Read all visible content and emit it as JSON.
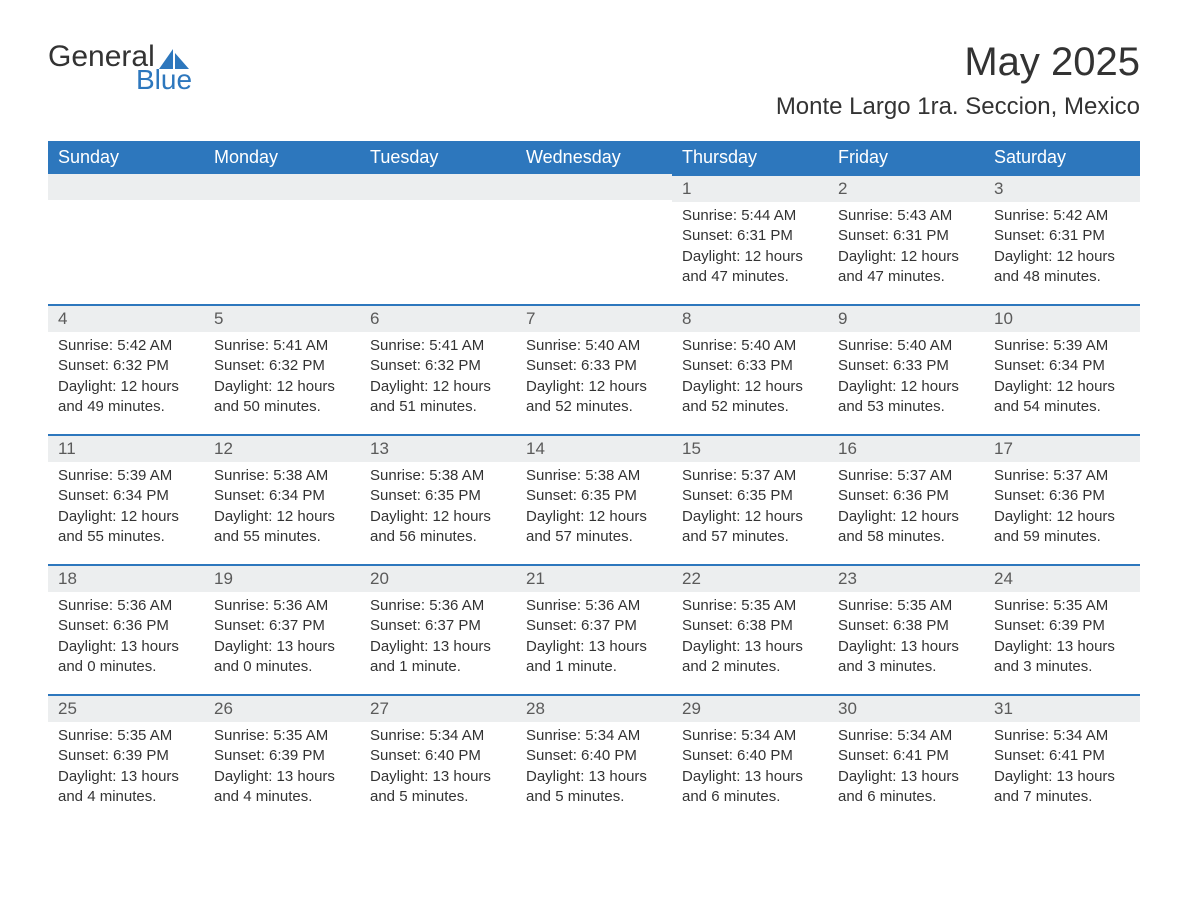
{
  "logo": {
    "text_general": "General",
    "text_blue": "Blue",
    "sail_color": "#2d77bd"
  },
  "title": "May 2025",
  "location": "Monte Largo 1ra. Seccion, Mexico",
  "colors": {
    "header_bg": "#2d77bd",
    "header_text": "#ffffff",
    "strip_bg": "#eceeef",
    "strip_border": "#2d77bd",
    "body_bg": "#ffffff",
    "text": "#333333"
  },
  "weekdays": [
    "Sunday",
    "Monday",
    "Tuesday",
    "Wednesday",
    "Thursday",
    "Friday",
    "Saturday"
  ],
  "weeks": [
    [
      null,
      null,
      null,
      null,
      {
        "day": "1",
        "sunrise": "Sunrise: 5:44 AM",
        "sunset": "Sunset: 6:31 PM",
        "daylight1": "Daylight: 12 hours",
        "daylight2": "and 47 minutes."
      },
      {
        "day": "2",
        "sunrise": "Sunrise: 5:43 AM",
        "sunset": "Sunset: 6:31 PM",
        "daylight1": "Daylight: 12 hours",
        "daylight2": "and 47 minutes."
      },
      {
        "day": "3",
        "sunrise": "Sunrise: 5:42 AM",
        "sunset": "Sunset: 6:31 PM",
        "daylight1": "Daylight: 12 hours",
        "daylight2": "and 48 minutes."
      }
    ],
    [
      {
        "day": "4",
        "sunrise": "Sunrise: 5:42 AM",
        "sunset": "Sunset: 6:32 PM",
        "daylight1": "Daylight: 12 hours",
        "daylight2": "and 49 minutes."
      },
      {
        "day": "5",
        "sunrise": "Sunrise: 5:41 AM",
        "sunset": "Sunset: 6:32 PM",
        "daylight1": "Daylight: 12 hours",
        "daylight2": "and 50 minutes."
      },
      {
        "day": "6",
        "sunrise": "Sunrise: 5:41 AM",
        "sunset": "Sunset: 6:32 PM",
        "daylight1": "Daylight: 12 hours",
        "daylight2": "and 51 minutes."
      },
      {
        "day": "7",
        "sunrise": "Sunrise: 5:40 AM",
        "sunset": "Sunset: 6:33 PM",
        "daylight1": "Daylight: 12 hours",
        "daylight2": "and 52 minutes."
      },
      {
        "day": "8",
        "sunrise": "Sunrise: 5:40 AM",
        "sunset": "Sunset: 6:33 PM",
        "daylight1": "Daylight: 12 hours",
        "daylight2": "and 52 minutes."
      },
      {
        "day": "9",
        "sunrise": "Sunrise: 5:40 AM",
        "sunset": "Sunset: 6:33 PM",
        "daylight1": "Daylight: 12 hours",
        "daylight2": "and 53 minutes."
      },
      {
        "day": "10",
        "sunrise": "Sunrise: 5:39 AM",
        "sunset": "Sunset: 6:34 PM",
        "daylight1": "Daylight: 12 hours",
        "daylight2": "and 54 minutes."
      }
    ],
    [
      {
        "day": "11",
        "sunrise": "Sunrise: 5:39 AM",
        "sunset": "Sunset: 6:34 PM",
        "daylight1": "Daylight: 12 hours",
        "daylight2": "and 55 minutes."
      },
      {
        "day": "12",
        "sunrise": "Sunrise: 5:38 AM",
        "sunset": "Sunset: 6:34 PM",
        "daylight1": "Daylight: 12 hours",
        "daylight2": "and 55 minutes."
      },
      {
        "day": "13",
        "sunrise": "Sunrise: 5:38 AM",
        "sunset": "Sunset: 6:35 PM",
        "daylight1": "Daylight: 12 hours",
        "daylight2": "and 56 minutes."
      },
      {
        "day": "14",
        "sunrise": "Sunrise: 5:38 AM",
        "sunset": "Sunset: 6:35 PM",
        "daylight1": "Daylight: 12 hours",
        "daylight2": "and 57 minutes."
      },
      {
        "day": "15",
        "sunrise": "Sunrise: 5:37 AM",
        "sunset": "Sunset: 6:35 PM",
        "daylight1": "Daylight: 12 hours",
        "daylight2": "and 57 minutes."
      },
      {
        "day": "16",
        "sunrise": "Sunrise: 5:37 AM",
        "sunset": "Sunset: 6:36 PM",
        "daylight1": "Daylight: 12 hours",
        "daylight2": "and 58 minutes."
      },
      {
        "day": "17",
        "sunrise": "Sunrise: 5:37 AM",
        "sunset": "Sunset: 6:36 PM",
        "daylight1": "Daylight: 12 hours",
        "daylight2": "and 59 minutes."
      }
    ],
    [
      {
        "day": "18",
        "sunrise": "Sunrise: 5:36 AM",
        "sunset": "Sunset: 6:36 PM",
        "daylight1": "Daylight: 13 hours",
        "daylight2": "and 0 minutes."
      },
      {
        "day": "19",
        "sunrise": "Sunrise: 5:36 AM",
        "sunset": "Sunset: 6:37 PM",
        "daylight1": "Daylight: 13 hours",
        "daylight2": "and 0 minutes."
      },
      {
        "day": "20",
        "sunrise": "Sunrise: 5:36 AM",
        "sunset": "Sunset: 6:37 PM",
        "daylight1": "Daylight: 13 hours",
        "daylight2": "and 1 minute."
      },
      {
        "day": "21",
        "sunrise": "Sunrise: 5:36 AM",
        "sunset": "Sunset: 6:37 PM",
        "daylight1": "Daylight: 13 hours",
        "daylight2": "and 1 minute."
      },
      {
        "day": "22",
        "sunrise": "Sunrise: 5:35 AM",
        "sunset": "Sunset: 6:38 PM",
        "daylight1": "Daylight: 13 hours",
        "daylight2": "and 2 minutes."
      },
      {
        "day": "23",
        "sunrise": "Sunrise: 5:35 AM",
        "sunset": "Sunset: 6:38 PM",
        "daylight1": "Daylight: 13 hours",
        "daylight2": "and 3 minutes."
      },
      {
        "day": "24",
        "sunrise": "Sunrise: 5:35 AM",
        "sunset": "Sunset: 6:39 PM",
        "daylight1": "Daylight: 13 hours",
        "daylight2": "and 3 minutes."
      }
    ],
    [
      {
        "day": "25",
        "sunrise": "Sunrise: 5:35 AM",
        "sunset": "Sunset: 6:39 PM",
        "daylight1": "Daylight: 13 hours",
        "daylight2": "and 4 minutes."
      },
      {
        "day": "26",
        "sunrise": "Sunrise: 5:35 AM",
        "sunset": "Sunset: 6:39 PM",
        "daylight1": "Daylight: 13 hours",
        "daylight2": "and 4 minutes."
      },
      {
        "day": "27",
        "sunrise": "Sunrise: 5:34 AM",
        "sunset": "Sunset: 6:40 PM",
        "daylight1": "Daylight: 13 hours",
        "daylight2": "and 5 minutes."
      },
      {
        "day": "28",
        "sunrise": "Sunrise: 5:34 AM",
        "sunset": "Sunset: 6:40 PM",
        "daylight1": "Daylight: 13 hours",
        "daylight2": "and 5 minutes."
      },
      {
        "day": "29",
        "sunrise": "Sunrise: 5:34 AM",
        "sunset": "Sunset: 6:40 PM",
        "daylight1": "Daylight: 13 hours",
        "daylight2": "and 6 minutes."
      },
      {
        "day": "30",
        "sunrise": "Sunrise: 5:34 AM",
        "sunset": "Sunset: 6:41 PM",
        "daylight1": "Daylight: 13 hours",
        "daylight2": "and 6 minutes."
      },
      {
        "day": "31",
        "sunrise": "Sunrise: 5:34 AM",
        "sunset": "Sunset: 6:41 PM",
        "daylight1": "Daylight: 13 hours",
        "daylight2": "and 7 minutes."
      }
    ]
  ]
}
